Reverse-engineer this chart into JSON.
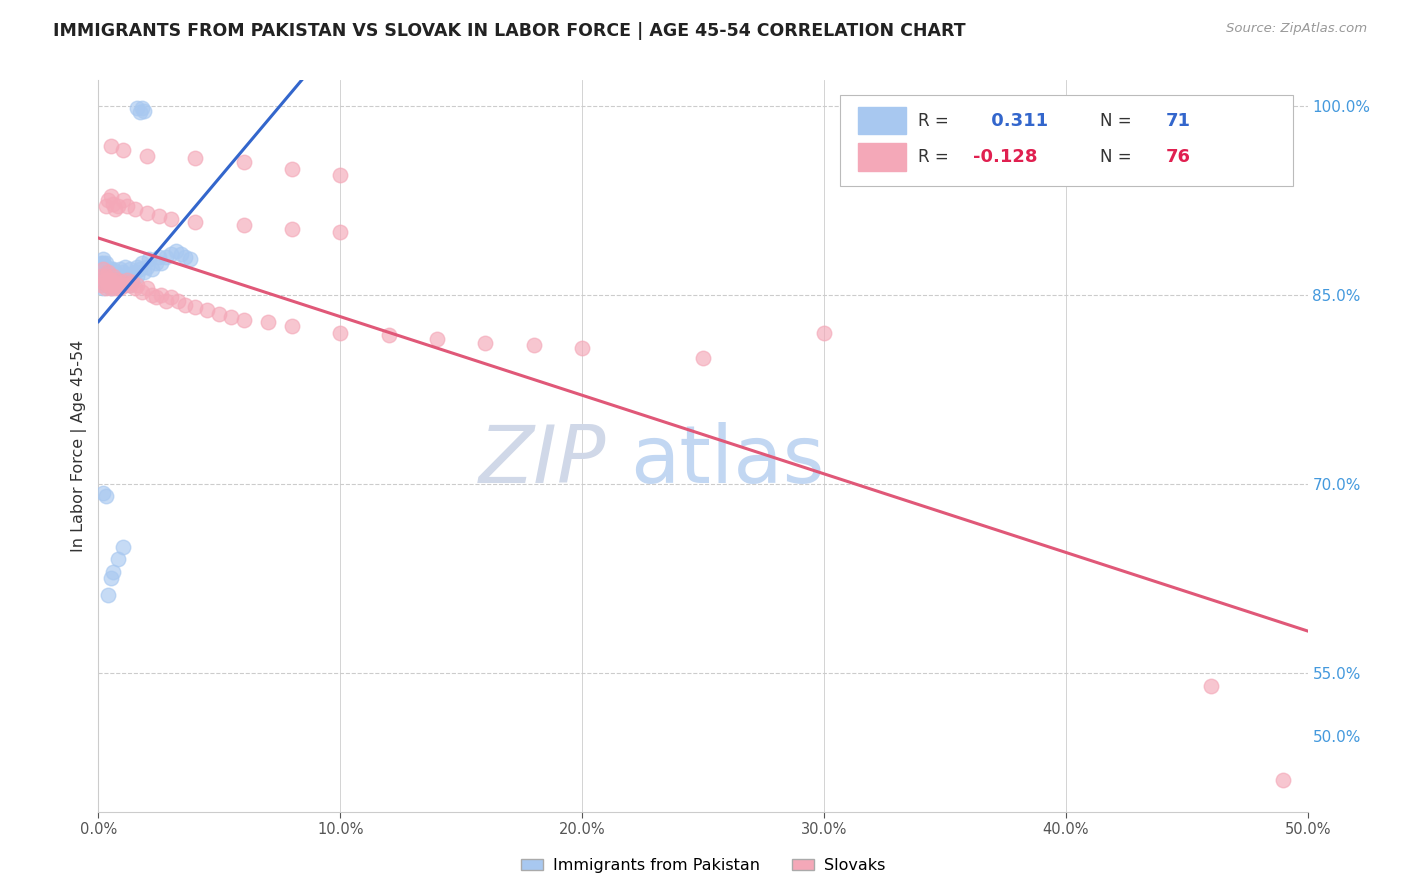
{
  "title": "IMMIGRANTS FROM PAKISTAN VS SLOVAK IN LABOR FORCE | AGE 45-54 CORRELATION CHART",
  "source": "Source: ZipAtlas.com",
  "ylabel": "In Labor Force | Age 45-54",
  "xlim": [
    0.0,
    0.5
  ],
  "ylim": [
    0.44,
    1.02
  ],
  "R_pakistan": 0.311,
  "N_pakistan": 71,
  "R_slovak": -0.128,
  "N_slovak": 76,
  "color_pakistan": "#a8c8f0",
  "color_slovak": "#f4a8b8",
  "trend_color_pakistan": "#3366cc",
  "trend_color_slovak": "#e05878",
  "legend_label_pakistan": "Immigrants from Pakistan",
  "legend_label_slovak": "Slovaks",
  "watermark_zip": "ZIP",
  "watermark_atlas": "atlas",
  "background_color": "#ffffff",
  "grid_color": "#cccccc",
  "right_axis_color": "#4499dd",
  "pakistan_x": [
    0.001,
    0.001,
    0.001,
    0.001,
    0.001,
    0.002,
    0.002,
    0.002,
    0.002,
    0.002,
    0.002,
    0.003,
    0.003,
    0.003,
    0.003,
    0.003,
    0.004,
    0.004,
    0.004,
    0.004,
    0.005,
    0.005,
    0.005,
    0.005,
    0.006,
    0.006,
    0.006,
    0.007,
    0.007,
    0.008,
    0.008,
    0.009,
    0.009,
    0.01,
    0.01,
    0.011,
    0.011,
    0.012,
    0.012,
    0.013,
    0.013,
    0.014,
    0.015,
    0.016,
    0.016,
    0.017,
    0.018,
    0.019,
    0.02,
    0.021,
    0.022,
    0.024,
    0.025,
    0.026,
    0.028,
    0.03,
    0.032,
    0.034,
    0.036,
    0.038,
    0.016,
    0.017,
    0.018,
    0.019,
    0.002,
    0.003,
    0.004,
    0.005,
    0.006,
    0.008,
    0.01
  ],
  "pakistan_y": [
    0.87,
    0.865,
    0.875,
    0.872,
    0.86,
    0.875,
    0.868,
    0.862,
    0.87,
    0.878,
    0.855,
    0.872,
    0.866,
    0.87,
    0.858,
    0.875,
    0.865,
    0.87,
    0.858,
    0.862,
    0.87,
    0.855,
    0.865,
    0.858,
    0.87,
    0.862,
    0.858,
    0.868,
    0.86,
    0.865,
    0.858,
    0.87,
    0.862,
    0.868,
    0.86,
    0.872,
    0.858,
    0.865,
    0.86,
    0.87,
    0.858,
    0.862,
    0.868,
    0.872,
    0.865,
    0.87,
    0.875,
    0.868,
    0.872,
    0.878,
    0.87,
    0.875,
    0.88,
    0.875,
    0.88,
    0.882,
    0.885,
    0.882,
    0.88,
    0.878,
    0.998,
    0.995,
    0.998,
    0.996,
    0.693,
    0.69,
    0.612,
    0.625,
    0.63,
    0.64,
    0.65
  ],
  "slovak_x": [
    0.001,
    0.001,
    0.002,
    0.002,
    0.003,
    0.003,
    0.003,
    0.004,
    0.004,
    0.005,
    0.005,
    0.005,
    0.006,
    0.006,
    0.007,
    0.007,
    0.008,
    0.008,
    0.009,
    0.009,
    0.01,
    0.011,
    0.012,
    0.013,
    0.014,
    0.015,
    0.016,
    0.018,
    0.02,
    0.022,
    0.024,
    0.026,
    0.028,
    0.03,
    0.033,
    0.036,
    0.04,
    0.045,
    0.05,
    0.055,
    0.06,
    0.07,
    0.08,
    0.1,
    0.12,
    0.14,
    0.16,
    0.18,
    0.2,
    0.25,
    0.003,
    0.004,
    0.005,
    0.006,
    0.007,
    0.008,
    0.01,
    0.012,
    0.015,
    0.02,
    0.025,
    0.03,
    0.04,
    0.06,
    0.08,
    0.1,
    0.005,
    0.01,
    0.02,
    0.04,
    0.06,
    0.08,
    0.1,
    0.3,
    0.46,
    0.49
  ],
  "slovak_y": [
    0.865,
    0.858,
    0.86,
    0.87,
    0.862,
    0.855,
    0.865,
    0.858,
    0.868,
    0.862,
    0.855,
    0.86,
    0.865,
    0.858,
    0.862,
    0.855,
    0.858,
    0.862,
    0.858,
    0.855,
    0.86,
    0.858,
    0.862,
    0.858,
    0.86,
    0.855,
    0.858,
    0.852,
    0.855,
    0.85,
    0.848,
    0.85,
    0.845,
    0.848,
    0.845,
    0.842,
    0.84,
    0.838,
    0.835,
    0.832,
    0.83,
    0.828,
    0.825,
    0.82,
    0.818,
    0.815,
    0.812,
    0.81,
    0.808,
    0.8,
    0.92,
    0.925,
    0.928,
    0.922,
    0.918,
    0.92,
    0.925,
    0.92,
    0.918,
    0.915,
    0.912,
    0.91,
    0.908,
    0.905,
    0.902,
    0.9,
    0.968,
    0.965,
    0.96,
    0.958,
    0.955,
    0.95,
    0.945,
    0.82,
    0.54,
    0.465
  ]
}
